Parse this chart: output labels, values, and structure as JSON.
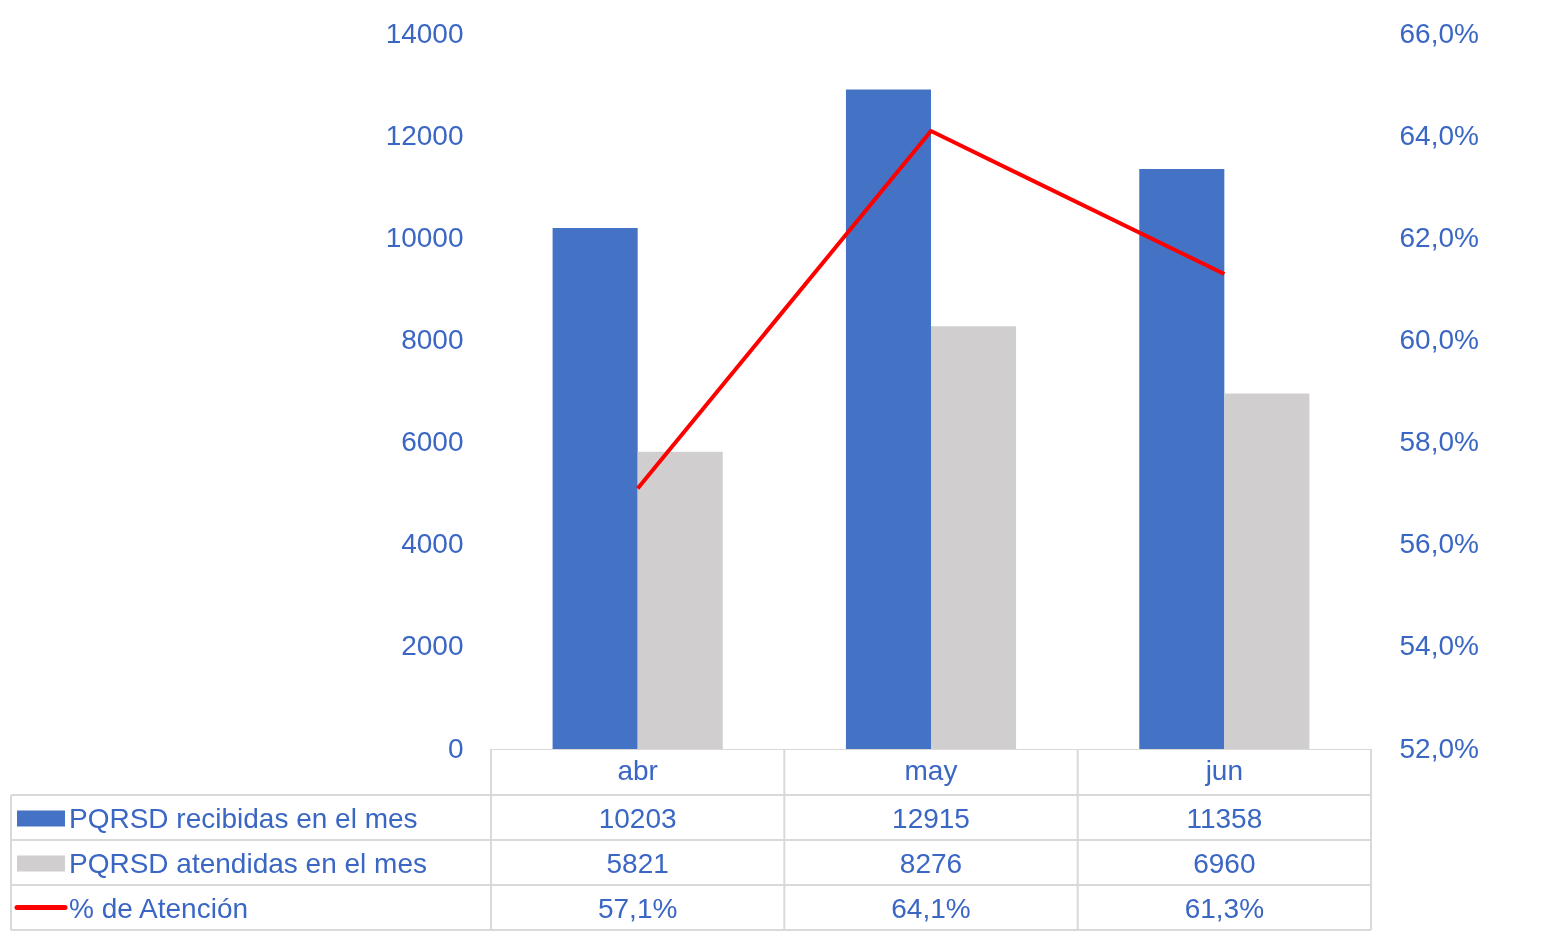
{
  "chart_data": {
    "type": "bar",
    "categories": [
      "abr",
      "may",
      "jun"
    ],
    "series": [
      {
        "name": "PQRSD recibidas en el mes",
        "color": "#4472c4",
        "values": [
          10203,
          12915,
          11358
        ],
        "value_labels": [
          "10203",
          "12915",
          "11358"
        ]
      },
      {
        "name": "PQRSD atendidas en el mes",
        "color": "#d0cece",
        "values": [
          5821,
          8276,
          6960
        ],
        "value_labels": [
          "5821",
          "8276",
          "6960"
        ]
      },
      {
        "name": "% de Atención",
        "type": "line",
        "axis": "y2",
        "color": "#ff0000",
        "values": [
          57.1,
          64.1,
          61.3
        ],
        "value_labels": [
          "57,1%",
          "64,1%",
          "61,3%"
        ]
      }
    ],
    "ylim": [
      0,
      14000
    ],
    "yticks": [
      0,
      2000,
      4000,
      6000,
      8000,
      10000,
      12000,
      14000
    ],
    "y2lim": [
      52,
      66
    ],
    "y2ticks": [
      {
        "value": 52,
        "label": "52,0%"
      },
      {
        "value": 54,
        "label": "54,0%"
      },
      {
        "value": 56,
        "label": "56,0%"
      },
      {
        "value": 58,
        "label": "58,0%"
      },
      {
        "value": 60,
        "label": "60,0%"
      },
      {
        "value": 62,
        "label": "62,0%"
      },
      {
        "value": 64,
        "label": "64,0%"
      },
      {
        "value": 66,
        "label": "66,0%"
      }
    ],
    "grid": false,
    "legend": "bottom",
    "marker": "none",
    "line_style": "solid"
  }
}
